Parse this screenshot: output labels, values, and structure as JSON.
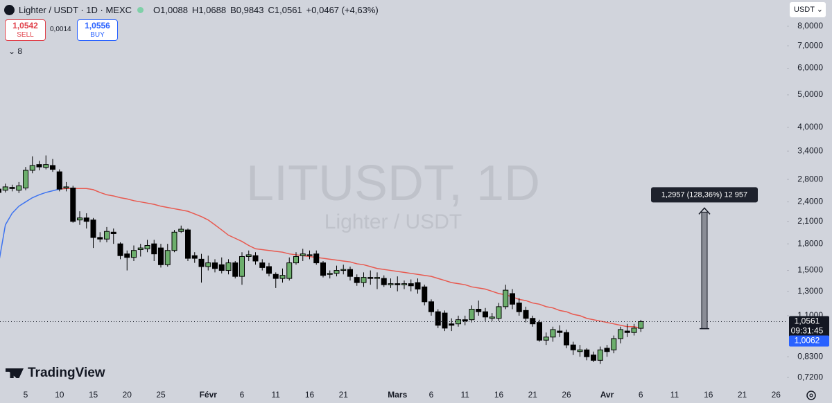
{
  "header": {
    "symbol": "Lighter / USDT · 1D · MEXC",
    "o": "O",
    "h": "H",
    "b": "B",
    "c": "C",
    "change": "+0,0467 (+4,63%)",
    "sell_price": "1,0542",
    "sell": "SELL",
    "spread": "0,0014",
    "buy_price": "1,0556",
    "buy": "BUY",
    "indicators": "8",
    "currency": "USDT",
    "logo": "TradingView"
  },
  "chart_data": {
    "type": "candlestick",
    "watermark": "LITUSDT, 1D",
    "watermark_sub": "Lighter / USDT",
    "categories": [
      null,
      null,
      null,
      null,
      "5",
      null,
      null,
      null,
      null,
      "10",
      null,
      null,
      null,
      null,
      "15",
      null,
      null,
      null,
      null,
      "20",
      null,
      null,
      null,
      null,
      "25",
      null,
      null,
      null,
      null,
      null,
      null,
      "Févr",
      null,
      null,
      null,
      null,
      "6",
      null,
      null,
      null,
      null,
      "11",
      null,
      null,
      null,
      null,
      "16",
      null,
      null,
      null,
      null,
      "21",
      null,
      null,
      null,
      null,
      null,
      null,
      null,
      "Mars",
      null,
      null,
      null,
      null,
      "6",
      null,
      null,
      null,
      null,
      "11",
      null,
      null,
      null,
      null,
      "16",
      null,
      null,
      null,
      null,
      "21",
      null,
      null,
      null,
      null,
      "26",
      null,
      null,
      null,
      null,
      null,
      "Avr",
      null,
      null,
      null,
      null,
      "6",
      null,
      null,
      null,
      null,
      "11",
      null,
      null,
      null,
      null,
      "16",
      null,
      null,
      null,
      null,
      "21",
      null,
      null,
      null,
      null,
      "26",
      null
    ],
    "open": [
      2.62,
      2.6,
      2.65,
      2.6,
      2.64,
      2.98,
      3.1,
      3.04,
      3.08,
      2.95,
      2.64,
      2.64,
      2.12,
      2.15,
      2.12,
      1.88,
      1.86,
      1.95,
      1.8,
      1.68,
      1.64,
      1.73,
      1.74,
      1.8,
      1.75,
      1.56,
      1.72,
      1.96,
      1.98,
      1.66,
      1.62,
      1.54,
      1.58,
      1.56,
      1.5,
      1.58,
      1.44,
      1.65,
      1.66,
      1.58,
      1.54,
      1.46,
      1.42,
      1.42,
      1.58,
      1.66,
      1.66,
      1.68,
      1.58,
      1.46,
      1.47,
      1.5,
      1.51,
      1.43,
      1.38,
      1.43,
      1.42,
      1.42,
      1.36,
      1.37,
      1.36,
      1.37,
      1.38,
      1.34,
      1.21,
      1.13,
      1.12,
      1.04,
      1.04,
      1.07,
      1.07,
      1.15,
      1.13,
      1.08,
      1.08,
      1.17,
      1.28,
      1.2,
      1.14,
      1.08,
      1.05,
      0.93,
      0.95,
      0.99,
      0.98,
      0.9,
      0.86,
      0.87,
      0.84,
      0.81,
      0.88,
      0.87,
      0.94,
      0.99,
      0.98,
      1.0088,
      null,
      null,
      null,
      null,
      null,
      null,
      null,
      null,
      null,
      null,
      null,
      null,
      null,
      null,
      null,
      null,
      null,
      null,
      null,
      null,
      null
    ],
    "high": [
      2.68,
      2.72,
      2.7,
      2.75,
      3.05,
      3.28,
      3.18,
      3.3,
      3.22,
      3.0,
      2.75,
      2.68,
      2.25,
      2.22,
      2.15,
      1.95,
      2.02,
      2.0,
      1.82,
      1.72,
      1.78,
      1.8,
      1.85,
      1.85,
      1.8,
      1.8,
      1.98,
      2.04,
      2.0,
      1.7,
      1.68,
      1.66,
      1.62,
      1.64,
      1.62,
      1.6,
      1.7,
      1.72,
      1.7,
      1.62,
      1.58,
      1.48,
      1.52,
      1.64,
      1.7,
      1.74,
      1.72,
      1.72,
      1.6,
      1.5,
      1.55,
      1.56,
      1.54,
      1.46,
      1.48,
      1.5,
      1.48,
      1.45,
      1.42,
      1.44,
      1.4,
      1.41,
      1.42,
      1.36,
      1.23,
      1.15,
      1.14,
      1.08,
      1.1,
      1.1,
      1.18,
      1.22,
      1.16,
      1.12,
      1.2,
      1.36,
      1.32,
      1.24,
      1.17,
      1.1,
      1.07,
      0.98,
      1.02,
      1.03,
      1.0,
      0.92,
      0.9,
      0.88,
      0.86,
      0.89,
      0.9,
      0.96,
      1.02,
      1.04,
      1.04,
      1.0688,
      null,
      null,
      null,
      null,
      null,
      null,
      null,
      null,
      null,
      null,
      null,
      null,
      null,
      null,
      null,
      null,
      null,
      null,
      null,
      null,
      null
    ],
    "low": [
      2.52,
      2.56,
      2.58,
      2.55,
      2.6,
      2.92,
      2.98,
      3.0,
      2.95,
      2.58,
      2.58,
      2.08,
      2.05,
      2.0,
      1.75,
      1.82,
      1.82,
      1.8,
      1.62,
      1.5,
      1.6,
      1.65,
      1.7,
      1.6,
      1.53,
      1.54,
      1.7,
      1.94,
      1.6,
      1.58,
      1.38,
      1.5,
      1.48,
      1.47,
      1.46,
      1.42,
      1.36,
      1.6,
      1.56,
      1.5,
      1.44,
      1.33,
      1.38,
      1.4,
      1.56,
      1.6,
      1.62,
      1.56,
      1.43,
      1.42,
      1.44,
      1.46,
      1.4,
      1.35,
      1.34,
      1.36,
      1.32,
      1.34,
      1.33,
      1.3,
      1.32,
      1.3,
      1.28,
      1.18,
      1.1,
      1.01,
      0.99,
      0.99,
      1.02,
      1.03,
      1.05,
      1.1,
      1.06,
      1.06,
      1.06,
      1.15,
      1.15,
      1.1,
      1.05,
      1.02,
      0.92,
      0.9,
      0.92,
      0.95,
      0.88,
      0.84,
      0.83,
      0.81,
      0.8,
      0.79,
      0.83,
      0.85,
      0.91,
      0.95,
      0.96,
      0.9843,
      null,
      null,
      null,
      null,
      null,
      null,
      null,
      null,
      null,
      null,
      null,
      null,
      null,
      null,
      null,
      null,
      null,
      null,
      null,
      null,
      null
    ],
    "close": [
      2.56,
      2.66,
      2.63,
      2.68,
      2.98,
      3.08,
      3.05,
      3.1,
      3.0,
      2.62,
      2.66,
      2.1,
      2.15,
      2.1,
      1.88,
      1.86,
      1.96,
      1.93,
      1.66,
      1.64,
      1.72,
      1.75,
      1.78,
      1.68,
      1.56,
      1.72,
      1.95,
      1.99,
      1.63,
      1.63,
      1.54,
      1.58,
      1.52,
      1.5,
      1.58,
      1.44,
      1.65,
      1.67,
      1.6,
      1.53,
      1.47,
      1.42,
      1.45,
      1.58,
      1.65,
      1.68,
      1.67,
      1.58,
      1.45,
      1.47,
      1.5,
      1.51,
      1.44,
      1.38,
      1.43,
      1.42,
      1.43,
      1.36,
      1.37,
      1.36,
      1.37,
      1.35,
      1.32,
      1.21,
      1.13,
      1.03,
      1.01,
      1.03,
      1.07,
      1.06,
      1.15,
      1.13,
      1.09,
      1.09,
      1.17,
      1.31,
      1.19,
      1.13,
      1.08,
      1.04,
      0.93,
      0.95,
      1.0,
      0.98,
      0.9,
      0.87,
      0.87,
      0.83,
      0.81,
      0.87,
      0.86,
      0.94,
      1.0,
      0.98,
      1.01,
      1.0561,
      null,
      null,
      null,
      null,
      null,
      null,
      null,
      null,
      null,
      null,
      null,
      null,
      null,
      null,
      null,
      null,
      null,
      null,
      null,
      null,
      null
    ],
    "last_labels": {
      "open": "1,0088",
      "high": "1,0688",
      "low": "0,9843",
      "close": "1,0561"
    },
    "countdown": "09:31:45",
    "up_color": "#6cae6c",
    "down_color": "#000000",
    "overlays": [
      {
        "color": "#3d73f0",
        "values": [
          1.57,
          2.05,
          2.22,
          2.33,
          2.4,
          2.47,
          2.52,
          2.56,
          2.59,
          2.62,
          null,
          null,
          null,
          null,
          null,
          null,
          null,
          null,
          null,
          null,
          null,
          null,
          null,
          null,
          null,
          null,
          null,
          null,
          null,
          null,
          null,
          null,
          null,
          null,
          null,
          null,
          null,
          null,
          null,
          null,
          null,
          null,
          null,
          null,
          null,
          null,
          null,
          null,
          null,
          null,
          null,
          null,
          null,
          null,
          null,
          null,
          null,
          null,
          null,
          null,
          null,
          null,
          null,
          null,
          null,
          null,
          null,
          null,
          null,
          null,
          null,
          null,
          null,
          null,
          null,
          null,
          null,
          null,
          null,
          null,
          null,
          null,
          null,
          null,
          null,
          null,
          null,
          null,
          null,
          null,
          null,
          null,
          null,
          null,
          null,
          null,
          null,
          null,
          null,
          null,
          null,
          null,
          null,
          null,
          null,
          null,
          null,
          null,
          null,
          null,
          null,
          null,
          null,
          null,
          null,
          null,
          null
        ]
      },
      {
        "color": "#e8594f",
        "values": [
          null,
          null,
          null,
          null,
          null,
          null,
          null,
          null,
          null,
          2.62,
          2.63,
          2.63,
          2.63,
          2.63,
          2.61,
          2.56,
          2.52,
          2.5,
          2.47,
          2.45,
          2.42,
          2.4,
          2.38,
          2.36,
          2.33,
          2.31,
          2.29,
          2.27,
          2.25,
          2.21,
          2.17,
          2.12,
          2.05,
          1.98,
          1.91,
          1.87,
          1.83,
          1.78,
          1.74,
          1.73,
          1.72,
          1.71,
          1.7,
          1.68,
          1.67,
          1.66,
          1.65,
          1.64,
          1.63,
          1.62,
          1.61,
          1.6,
          1.59,
          1.57,
          1.56,
          1.54,
          1.52,
          1.51,
          1.5,
          1.49,
          1.48,
          1.47,
          1.46,
          1.45,
          1.44,
          1.42,
          1.4,
          1.38,
          1.37,
          1.36,
          1.34,
          1.33,
          1.32,
          1.3,
          1.28,
          1.27,
          1.25,
          1.23,
          1.22,
          1.2,
          1.19,
          1.17,
          1.16,
          1.14,
          1.13,
          1.11,
          1.1,
          1.08,
          1.07,
          1.06,
          1.05,
          1.04,
          1.03,
          1.02,
          1.02,
          1.01,
          null,
          null,
          null,
          null,
          null,
          null,
          null,
          null,
          null,
          null,
          null,
          null,
          null,
          null,
          null,
          null,
          null,
          null,
          null,
          null,
          null
        ]
      }
    ],
    "ma_last": {
      "value": 1.0062,
      "label": "1,0062"
    },
    "measure": {
      "start": 1.0062,
      "change": 1.2957,
      "label": "1,2957 (128,36%) 12 957"
    },
    "log_scale": true,
    "ylim": [
      0.671,
      9.58
    ],
    "yticks": [
      {
        "value": 8,
        "label": "8,0000"
      },
      {
        "value": 7,
        "label": "7,0000"
      },
      {
        "value": 6,
        "label": "6,0000"
      },
      {
        "value": 5,
        "label": "5,0000"
      },
      {
        "value": 4,
        "label": "4,0000"
      },
      {
        "value": 3.4,
        "label": "3,4000"
      },
      {
        "value": 2.8,
        "label": "2,8000"
      },
      {
        "value": 2.4,
        "label": "2,4000"
      },
      {
        "value": 2.1,
        "label": "2,1000"
      },
      {
        "value": 1.8,
        "label": "1,8000"
      },
      {
        "value": 1.5,
        "label": "1,5000"
      },
      {
        "value": 1.3,
        "label": "1,3000"
      },
      {
        "value": 1.1,
        "label": "1,1000"
      },
      {
        "value": 0.83,
        "label": "0,8300"
      },
      {
        "value": 0.72,
        "label": "0,7200"
      }
    ],
    "grid": false
  }
}
